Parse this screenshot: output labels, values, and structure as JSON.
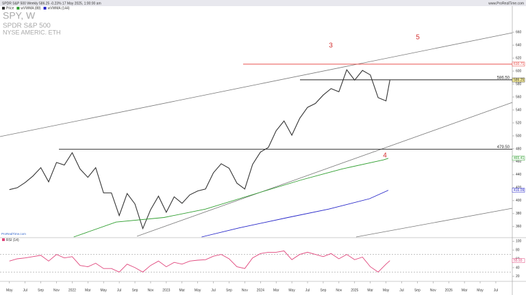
{
  "header": "SPDR S&P 500 Weekly 586.25 -0.23% 17 May 2025, 1:00:00 am",
  "site": "www.ProRealTime.com",
  "watermark": "ProRealTime.com",
  "chart_data": [
    {
      "type": "line",
      "title": "SPY, W",
      "subtitle": "SPDR S&P 500",
      "exchange": "NYSE AMERIC. ETH",
      "xlim": [
        2.8,
        68.1
      ],
      "ylim": [
        344,
        697
      ],
      "yticks": [
        360,
        380,
        400,
        420,
        440,
        460,
        480,
        500,
        520,
        540,
        560,
        580,
        600,
        620,
        640,
        660
      ],
      "series": [
        {
          "name": "Price",
          "color": "#333333",
          "x": [
            4,
            5,
            6,
            7,
            8,
            9,
            10,
            11,
            12,
            13,
            14,
            15,
            16,
            17,
            18,
            19,
            20,
            21,
            22,
            23,
            24,
            25,
            26,
            27,
            28,
            29,
            30,
            31,
            32,
            33,
            34,
            35,
            36,
            37,
            38,
            39,
            40,
            41,
            42,
            43,
            44,
            45,
            46,
            47,
            48,
            49,
            50,
            51,
            52,
            52.5
          ],
          "values": [
            417,
            420,
            428,
            438,
            451,
            429,
            459,
            455,
            474,
            449,
            436,
            451,
            412,
            412,
            377,
            411,
            395,
            357,
            386,
            407,
            382,
            406,
            396,
            409,
            415,
            418,
            443,
            457,
            450,
            427,
            418,
            456,
            475,
            482,
            508,
            523,
            501,
            527,
            544,
            550,
            563,
            573,
            568,
            602,
            586,
            601,
            594,
            559,
            554,
            586.25
          ]
        },
        {
          "name": "wVWMA (88)",
          "color": "#2e9e2e",
          "x": [
            12.2,
            17.6,
            23.7,
            29,
            36,
            41.2,
            46.4,
            51.7,
            52.3
          ],
          "values": [
            344,
            367,
            374,
            387,
            413,
            432,
            449,
            463,
            465.41
          ]
        },
        {
          "name": "wVWMA (144)",
          "color": "#2323c8",
          "x": [
            28.5,
            33.3,
            39.5,
            44.7,
            49.9,
            52.3
          ],
          "values": [
            344,
            358,
            374,
            387,
            403,
            416.09
          ]
        }
      ],
      "horizontal_lines": [
        {
          "value": 610.71,
          "color": "#e53935"
        },
        {
          "value": 586.5,
          "label": "586.50",
          "color": "#222222"
        },
        {
          "value": 479.5,
          "label": "479.50",
          "color": "#222222"
        }
      ],
      "annotations": [
        "3",
        "5",
        "4"
      ]
    },
    {
      "type": "line",
      "title": "RSI (14)",
      "xlim": [
        2.8,
        68.1
      ],
      "ylim": [
        12,
        105
      ],
      "yticks": [
        20,
        40,
        60,
        80,
        100
      ],
      "levels": [
        70,
        30
      ],
      "series": [
        {
          "name": "RSI",
          "color": "#e0457b",
          "x": [
            4,
            5,
            6,
            7,
            8,
            9,
            10,
            11,
            12,
            13,
            14,
            15,
            16,
            17,
            18,
            19,
            20,
            21,
            22,
            23,
            24,
            25,
            26,
            27,
            28,
            29,
            30,
            31,
            32,
            33,
            34,
            35,
            36,
            37,
            38,
            39,
            40,
            41,
            42,
            43,
            44,
            45,
            46,
            47,
            48,
            49,
            50,
            51,
            52,
            52.5
          ],
          "values": [
            55,
            60,
            62,
            65,
            68,
            55,
            70,
            62,
            65,
            45,
            42,
            50,
            38,
            38,
            30,
            48,
            40,
            30,
            45,
            55,
            42,
            52,
            48,
            55,
            57,
            58,
            66,
            70,
            60,
            42,
            38,
            62,
            72,
            75,
            75,
            78,
            58,
            70,
            75,
            70,
            65,
            72,
            60,
            70,
            58,
            64,
            42,
            30,
            48,
            55.93
          ]
        }
      ],
      "xticks": [
        {
          "value": 4,
          "label": "May"
        },
        {
          "value": 6,
          "label": "Jul"
        },
        {
          "value": 8,
          "label": "Sep"
        },
        {
          "value": 10,
          "label": "Nov"
        },
        {
          "value": 12,
          "label": "2022"
        },
        {
          "value": 14,
          "label": "Mar"
        },
        {
          "value": 16,
          "label": "May"
        },
        {
          "value": 18,
          "label": "Jul"
        },
        {
          "value": 20,
          "label": "Sep"
        },
        {
          "value": 22,
          "label": "Nov"
        },
        {
          "value": 24,
          "label": "2023"
        },
        {
          "value": 26,
          "label": "Mar"
        },
        {
          "value": 28,
          "label": "May"
        },
        {
          "value": 30,
          "label": "Jul"
        },
        {
          "value": 32,
          "label": "Sep"
        },
        {
          "value": 34,
          "label": "Nov"
        },
        {
          "value": 36,
          "label": "2024"
        },
        {
          "value": 38,
          "label": "Mar"
        },
        {
          "value": 40,
          "label": "May"
        },
        {
          "value": 42,
          "label": "Jul"
        },
        {
          "value": 44,
          "label": "Sep"
        },
        {
          "value": 46,
          "label": "Nov"
        },
        {
          "value": 48,
          "label": "2025"
        },
        {
          "value": 50,
          "label": "Mar"
        },
        {
          "value": 52,
          "label": "May"
        },
        {
          "value": 54,
          "label": "Jul"
        },
        {
          "value": 56,
          "label": "Sep"
        },
        {
          "value": 58,
          "label": "Nov"
        },
        {
          "value": 60,
          "label": "2026"
        },
        {
          "value": 62,
          "label": "Mar"
        },
        {
          "value": 64,
          "label": "May"
        },
        {
          "value": 66,
          "label": "Jul"
        }
      ]
    }
  ]
}
